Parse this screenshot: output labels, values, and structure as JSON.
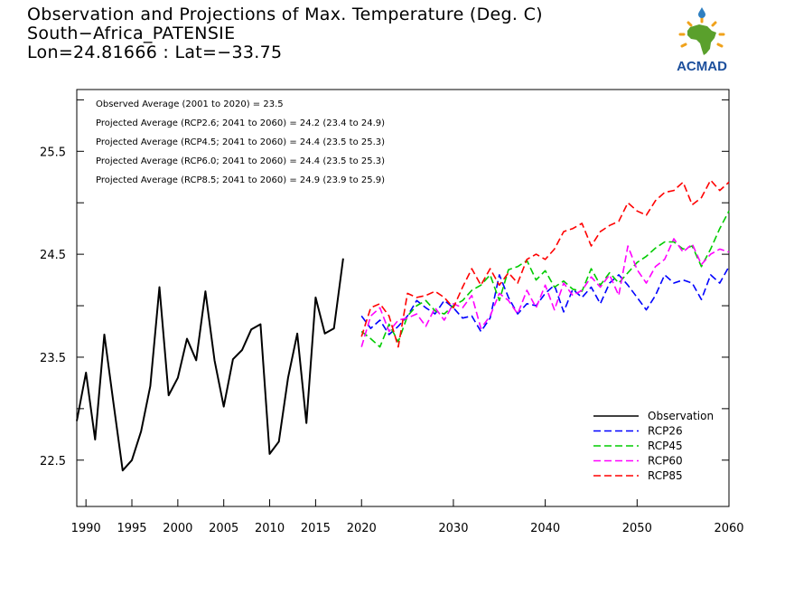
{
  "header": {
    "title_line1": "Observation and Projections of Max. Temperature (Deg. C)",
    "title_line2": "South−Africa_PATENSIE",
    "title_line3": "Lon=24.81666 : Lat=−33.75"
  },
  "logo": {
    "text": "ACMAD",
    "colors": {
      "africa": "#5aa02c",
      "text": "#1c4f9c",
      "sun": "#f0a21b",
      "drop": "#2f7fc1"
    }
  },
  "chart_data": {
    "type": "line",
    "x_range": [
      1989,
      2060
    ],
    "y_range": [
      22.05,
      26.1
    ],
    "x_ticks": [
      {
        "value": 1990,
        "label": "1990"
      },
      {
        "value": 1995,
        "label": "1995"
      },
      {
        "value": 2000,
        "label": "2000"
      },
      {
        "value": 2005,
        "label": "2005"
      },
      {
        "value": 2010,
        "label": "2010"
      },
      {
        "value": 2015,
        "label": "2015"
      },
      {
        "value": 2020,
        "label": "2020"
      },
      {
        "value": 2030,
        "label": "2030"
      },
      {
        "value": 2040,
        "label": "2040"
      },
      {
        "value": 2050,
        "label": "2050"
      },
      {
        "value": 2060,
        "label": "2060"
      }
    ],
    "y_ticks": [
      {
        "value": 22.5,
        "label": "22.5"
      },
      {
        "value": 23.5,
        "label": "23.5"
      },
      {
        "value": 24.5,
        "label": "24.5"
      },
      {
        "value": 25.5,
        "label": "25.5"
      }
    ],
    "y_minor_ticks": [
      22.5,
      23.0,
      23.5,
      24.0,
      24.5,
      25.0,
      25.5,
      26.0
    ],
    "annotations": [
      "Observed Average (2001 to 2020) = 23.5",
      "Projected Average (RCP2.6; 2041 to 2060) = 24.2 (23.4 to 24.9)",
      "Projected Average (RCP4.5; 2041 to 2060) = 24.4 (23.5 to 25.3)",
      "Projected Average (RCP6.0; 2041 to 2060) = 24.4 (23.5 to 25.3)",
      "Projected Average (RCP8.5; 2041 to 2060) = 24.9 (23.9 to 25.9)"
    ],
    "legend_position": "bottom-right",
    "series": [
      {
        "name": "Observation",
        "color": "#000000",
        "dash": "solid",
        "x_start": 1989,
        "values": [
          22.88,
          23.35,
          22.7,
          23.72,
          23.05,
          22.4,
          22.5,
          22.78,
          23.22,
          24.18,
          23.13,
          23.3,
          23.68,
          23.47,
          24.14,
          23.47,
          23.02,
          23.48,
          23.57,
          23.77,
          23.82,
          22.56,
          22.68,
          23.3,
          23.73,
          22.86,
          24.08,
          23.73,
          23.78,
          24.46
        ]
      },
      {
        "name": "RCP26",
        "color": "#0000ff",
        "dash": "dashed",
        "x_start": 2020,
        "values": [
          23.9,
          23.78,
          23.86,
          23.72,
          23.8,
          23.9,
          24.05,
          23.98,
          23.92,
          24.05,
          23.98,
          23.88,
          23.9,
          23.75,
          23.88,
          24.3,
          24.08,
          23.92,
          24.02,
          24.0,
          24.12,
          24.2,
          23.94,
          24.16,
          24.08,
          24.18,
          24.02,
          24.22,
          24.3,
          24.2,
          24.08,
          23.96,
          24.1,
          24.3,
          24.22,
          24.25,
          24.22,
          24.06,
          24.3,
          24.22,
          24.38
        ]
      },
      {
        "name": "RCP45",
        "color": "#00cc00",
        "dash": "dashed",
        "x_start": 2020,
        "values": [
          23.75,
          23.68,
          23.6,
          23.82,
          23.65,
          23.9,
          24.0,
          24.05,
          23.95,
          23.92,
          24.0,
          24.05,
          24.15,
          24.2,
          24.3,
          24.05,
          24.35,
          24.38,
          24.44,
          24.25,
          24.34,
          24.18,
          24.24,
          24.16,
          24.14,
          24.36,
          24.2,
          24.32,
          24.22,
          24.32,
          24.42,
          24.48,
          24.56,
          24.62,
          24.62,
          24.55,
          24.58,
          24.38,
          24.55,
          24.75,
          24.92
        ]
      },
      {
        "name": "RCP60",
        "color": "#ff00ff",
        "dash": "dashed",
        "x_start": 2020,
        "values": [
          23.6,
          23.9,
          23.98,
          23.75,
          23.86,
          23.88,
          23.92,
          23.8,
          23.98,
          23.86,
          24.02,
          23.98,
          24.1,
          23.78,
          23.9,
          24.12,
          24.05,
          23.92,
          24.15,
          23.98,
          24.2,
          23.96,
          24.22,
          24.1,
          24.15,
          24.28,
          24.18,
          24.3,
          24.1,
          24.58,
          24.35,
          24.22,
          24.38,
          24.45,
          24.65,
          24.52,
          24.6,
          24.4,
          24.5,
          24.55,
          24.52
        ]
      },
      {
        "name": "RCP85",
        "color": "#ff0000",
        "dash": "dashed",
        "x_start": 2020,
        "values": [
          23.7,
          23.98,
          24.02,
          23.9,
          23.6,
          24.12,
          24.08,
          24.1,
          24.14,
          24.08,
          23.98,
          24.18,
          24.36,
          24.2,
          24.36,
          24.2,
          24.32,
          24.22,
          24.45,
          24.5,
          24.45,
          24.55,
          24.72,
          24.75,
          24.8,
          24.58,
          24.72,
          24.78,
          24.82,
          25.0,
          24.92,
          24.88,
          25.02,
          25.1,
          25.12,
          25.2,
          24.98,
          25.05,
          25.22,
          25.12,
          25.2
        ]
      }
    ]
  }
}
